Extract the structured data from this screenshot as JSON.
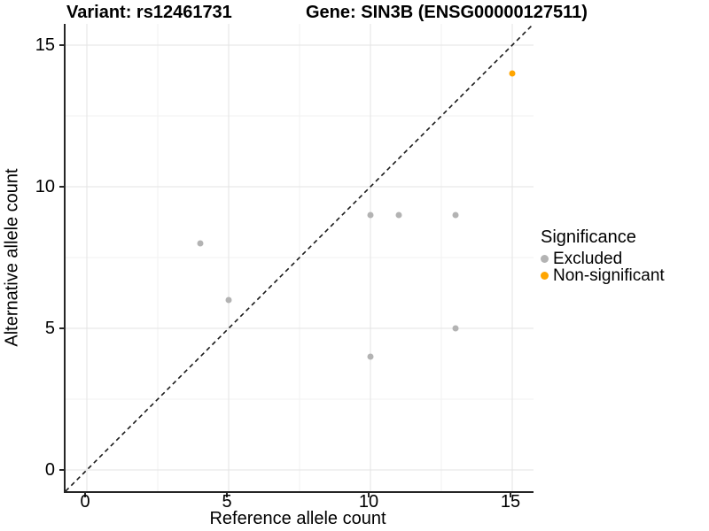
{
  "chart_data": {
    "type": "scatter",
    "title_left": "Variant: rs12461731",
    "title_right": "Gene: SIN3B (ENSG00000127511)",
    "xlabel": "Reference allele count",
    "ylabel": "Alternative allele count",
    "xlim": [
      -0.75,
      15.75
    ],
    "ylim": [
      -0.75,
      15.75
    ],
    "x_major_ticks": [
      0,
      5,
      10,
      15
    ],
    "y_major_ticks": [
      0,
      5,
      10,
      15
    ],
    "x_minor_ticks": [
      2.5,
      7.5,
      12.5
    ],
    "y_minor_ticks": [
      2.5,
      7.5,
      12.5
    ],
    "grid": true,
    "identity_line": {
      "style": "dashed",
      "slope": 1,
      "intercept": 0,
      "color": "#1a1a1a"
    },
    "legend": {
      "title": "Significance",
      "position": "right"
    },
    "series": [
      {
        "name": "Excluded",
        "color": "#b3b3b3",
        "points": [
          [
            4,
            8
          ],
          [
            5,
            6
          ],
          [
            10,
            9
          ],
          [
            11,
            9
          ],
          [
            13,
            9
          ],
          [
            10,
            4
          ],
          [
            13,
            5
          ]
        ]
      },
      {
        "name": "Non-significant",
        "color": "#FFA500",
        "points": [
          [
            15,
            14
          ]
        ]
      }
    ]
  },
  "colors": {
    "major_grid": "#e3e3e3",
    "minor_grid": "#f2f2f2",
    "axis_line": "#262626",
    "text": "#000000"
  }
}
